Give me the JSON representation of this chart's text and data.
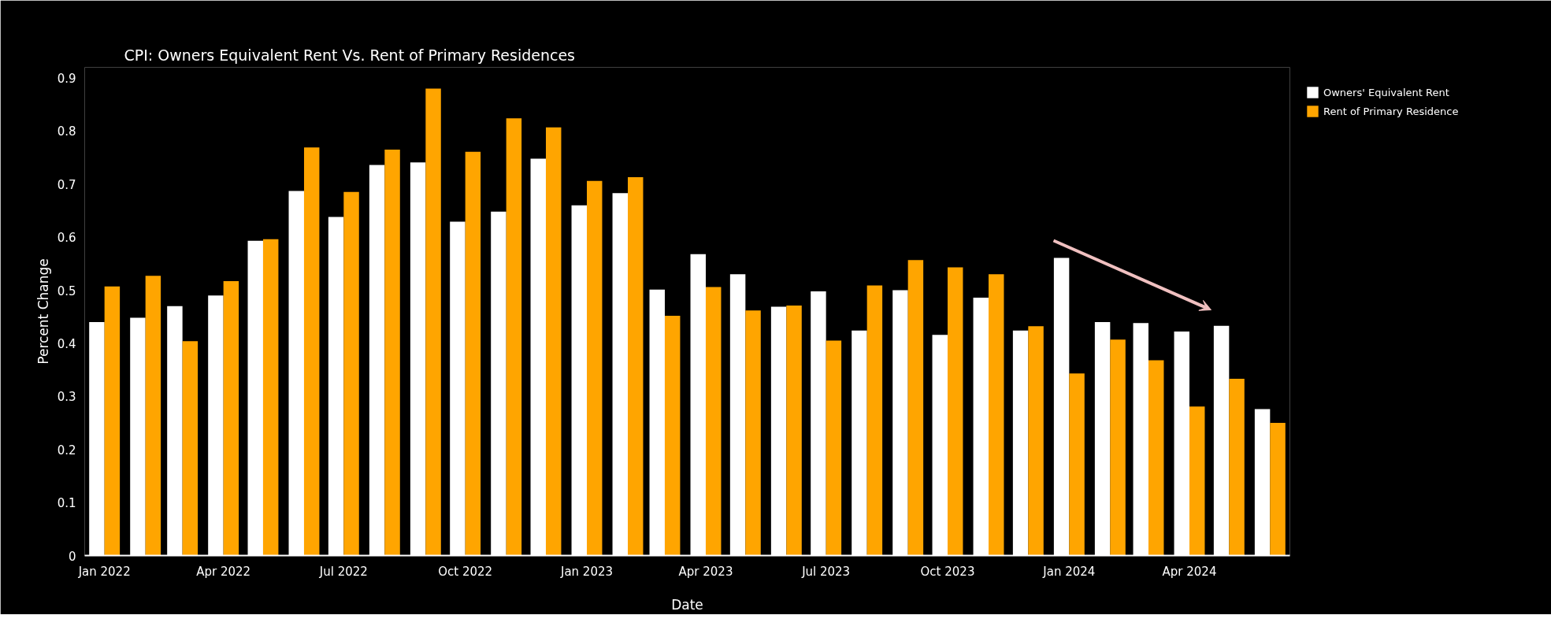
{
  "chart_data": {
    "type": "bar",
    "title": "CPI: Owners Equivalent Rent Vs. Rent of Primary Residences",
    "xlabel": "Date",
    "ylabel": "Percent Change",
    "x": [
      "2022-01",
      "2022-02",
      "2022-03",
      "2022-04",
      "2022-05",
      "2022-06",
      "2022-07",
      "2022-08",
      "2022-09",
      "2022-10",
      "2022-11",
      "2022-12",
      "2023-01",
      "2023-02",
      "2023-03",
      "2023-04",
      "2023-05",
      "2023-06",
      "2023-07",
      "2023-08",
      "2023-09",
      "2023-10",
      "2023-11",
      "2023-12",
      "2024-01",
      "2024-02",
      "2024-03",
      "2024-04",
      "2024-05",
      "2024-06"
    ],
    "series": [
      {
        "name": "Owners' Equivalent Rent",
        "color": "#ffffff",
        "values": [
          0.44,
          0.448,
          0.47,
          0.49,
          0.593,
          0.687,
          0.638,
          0.736,
          0.741,
          0.629,
          0.648,
          0.748,
          0.66,
          0.683,
          0.501,
          0.568,
          0.53,
          0.469,
          0.498,
          0.424,
          0.5,
          0.416,
          0.486,
          0.424,
          0.561,
          0.44,
          0.438,
          0.422,
          0.433,
          0.276
        ]
      },
      {
        "name": "Rent of Primary Residence",
        "color": "#ffa500",
        "values": [
          0.507,
          0.527,
          0.404,
          0.517,
          0.596,
          0.769,
          0.685,
          0.765,
          0.88,
          0.761,
          0.824,
          0.807,
          0.706,
          0.713,
          0.452,
          0.506,
          0.462,
          0.471,
          0.405,
          0.509,
          0.557,
          0.543,
          0.53,
          0.432,
          0.343,
          0.407,
          0.368,
          0.281,
          0.333,
          0.25
        ]
      }
    ],
    "xlim": [
      "2021-12-17",
      "2024-06-16"
    ],
    "xticks": [
      {
        "value": "2022-01",
        "label": "Jan 2022"
      },
      {
        "value": "2022-04",
        "label": "Apr 2022"
      },
      {
        "value": "2022-07",
        "label": "Jul 2022"
      },
      {
        "value": "2022-10",
        "label": "Oct 2022"
      },
      {
        "value": "2023-01",
        "label": "Jan 2023"
      },
      {
        "value": "2023-04",
        "label": "Apr 2023"
      },
      {
        "value": "2023-07",
        "label": "Jul 2023"
      },
      {
        "value": "2023-10",
        "label": "Oct 2023"
      },
      {
        "value": "2024-01",
        "label": "Jan 2024"
      },
      {
        "value": "2024-04",
        "label": "Apr 2024"
      }
    ],
    "ylim": [
      0,
      0.92
    ],
    "yticks": [
      0,
      0.1,
      0.2,
      0.3,
      0.4,
      0.5,
      0.6,
      0.7,
      0.8,
      0.9
    ],
    "grid": false,
    "legend": "top right"
  }
}
